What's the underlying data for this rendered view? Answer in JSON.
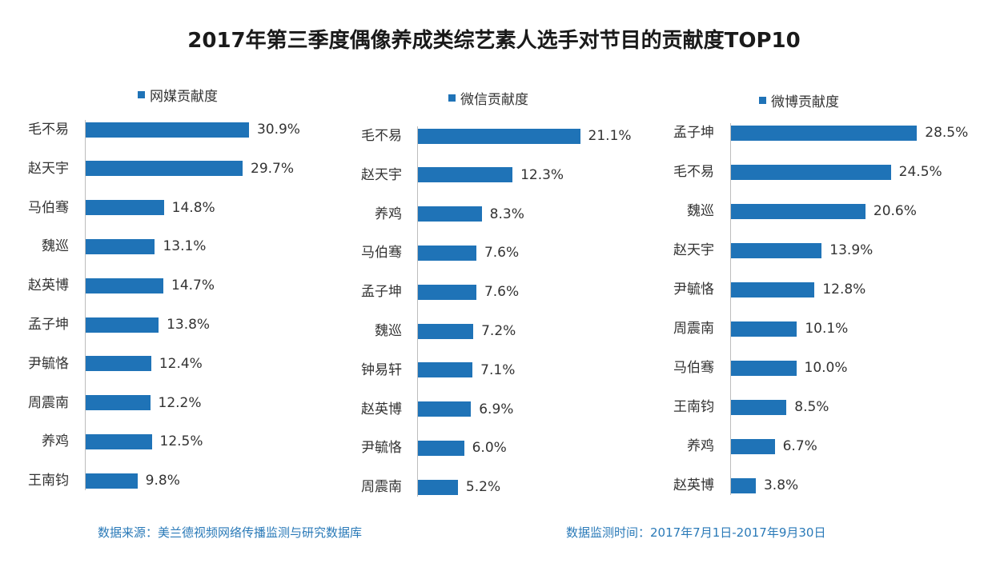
{
  "title": "2017年第三季度偶像养成类综艺素人选手对节目的贡献度TOP10",
  "colors": {
    "bar": "#1f73b7",
    "footer": "#2a7ab8"
  },
  "chart_data": [
    {
      "type": "bar",
      "orientation": "horizontal",
      "legend": "网媒贡献度",
      "categories": [
        "毛不易",
        "赵天宇",
        "马伯骞",
        "魏巡",
        "赵英博",
        "孟子坤",
        "尹毓恪",
        "周震南",
        "养鸡",
        "王南钧"
      ],
      "values": [
        30.9,
        29.7,
        14.8,
        13.1,
        14.7,
        13.8,
        12.4,
        12.2,
        12.5,
        9.8
      ],
      "labels": [
        "30.9%",
        "29.7%",
        "14.8%",
        "13.1%",
        "14.7%",
        "13.8%",
        "12.4%",
        "12.2%",
        "12.5%",
        "9.8%"
      ],
      "unit": "%"
    },
    {
      "type": "bar",
      "orientation": "horizontal",
      "legend": "微信贡献度",
      "categories": [
        "毛不易",
        "赵天宇",
        "养鸡",
        "马伯骞",
        "孟子坤",
        "魏巡",
        "钟易轩",
        "赵英博",
        "尹毓恪",
        "周震南"
      ],
      "values": [
        21.1,
        12.3,
        8.3,
        7.6,
        7.6,
        7.2,
        7.1,
        6.9,
        6.0,
        5.2
      ],
      "labels": [
        "21.1%",
        "12.3%",
        "8.3%",
        "7.6%",
        "7.6%",
        "7.2%",
        "7.1%",
        "6.9%",
        "6.0%",
        "5.2%"
      ],
      "unit": "%"
    },
    {
      "type": "bar",
      "orientation": "horizontal",
      "legend": "微博贡献度",
      "categories": [
        "孟子坤",
        "毛不易",
        "魏巡",
        "赵天宇",
        "尹毓恪",
        "周震南",
        "马伯骞",
        "王南钧",
        "养鸡",
        "赵英博"
      ],
      "values": [
        28.5,
        24.5,
        20.6,
        13.9,
        12.8,
        10.1,
        10.0,
        8.5,
        6.7,
        3.8
      ],
      "labels": [
        "28.5%",
        "24.5%",
        "20.6%",
        "13.9%",
        "12.8%",
        "10.1%",
        "10.0%",
        "8.5%",
        "6.7%",
        "3.8%"
      ],
      "unit": "%"
    }
  ],
  "footer": {
    "source": "数据来源：美兰德视频网络传播监测与研究数据库",
    "period": "数据监测时间：2017年7月1日-2017年9月30日"
  }
}
